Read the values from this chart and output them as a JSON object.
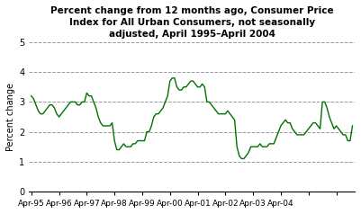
{
  "title": "Percent change from 12 months ago, Consumer Price\nIndex for All Urban Consumers, not seasonally\nadjusted, April 1995–April 2004",
  "ylabel": "Percent change",
  "xlabels": [
    "Apr-95",
    "Apr-96",
    "Apr-97",
    "Apr-98",
    "Apr-99",
    "Apr-00",
    "Apr-01",
    "Apr-02",
    "Apr-03",
    "Apr-04"
  ],
  "ylim": [
    0,
    5
  ],
  "yticks": [
    0,
    1,
    2,
    3,
    4,
    5
  ],
  "line_color": "#007000",
  "background_color": "#ffffff",
  "values": [
    3.2,
    3.1,
    2.9,
    2.7,
    2.6,
    2.6,
    2.7,
    2.8,
    2.9,
    2.9,
    2.8,
    2.6,
    2.5,
    2.6,
    2.7,
    2.8,
    2.9,
    3.0,
    3.0,
    3.0,
    2.9,
    2.9,
    3.0,
    3.0,
    3.3,
    3.2,
    3.2,
    3.0,
    2.8,
    2.5,
    2.3,
    2.2,
    2.2,
    2.2,
    2.2,
    2.3,
    1.7,
    1.4,
    1.4,
    1.5,
    1.6,
    1.5,
    1.5,
    1.5,
    1.6,
    1.6,
    1.7,
    1.7,
    1.7,
    1.7,
    2.0,
    2.0,
    2.2,
    2.5,
    2.6,
    2.6,
    2.7,
    2.8,
    3.0,
    3.2,
    3.7,
    3.8,
    3.8,
    3.5,
    3.4,
    3.4,
    3.5,
    3.5,
    3.6,
    3.7,
    3.7,
    3.6,
    3.5,
    3.5,
    3.6,
    3.5,
    3.0,
    3.0,
    2.9,
    2.8,
    2.7,
    2.6,
    2.6,
    2.6,
    2.6,
    2.7,
    2.6,
    2.5,
    2.4,
    1.5,
    1.2,
    1.1,
    1.1,
    1.2,
    1.3,
    1.5,
    1.5,
    1.5,
    1.5,
    1.6,
    1.5,
    1.5,
    1.5,
    1.6,
    1.6,
    1.6,
    1.8,
    2.0,
    2.2,
    2.3,
    2.4,
    2.3,
    2.3,
    2.1,
    2.0,
    1.9,
    1.9,
    1.9,
    1.9,
    2.0,
    2.1,
    2.2,
    2.3,
    2.3,
    2.2,
    2.1,
    3.0,
    3.0,
    2.8,
    2.5,
    2.3,
    2.1,
    2.2,
    2.1,
    2.0,
    1.9,
    1.9,
    1.7,
    1.7,
    2.2
  ]
}
